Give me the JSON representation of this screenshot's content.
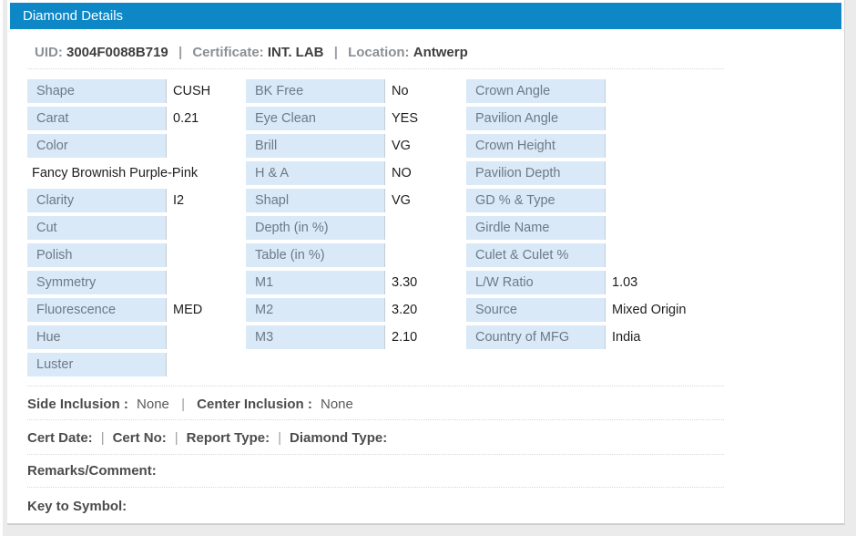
{
  "header": {
    "title": "Diamond Details"
  },
  "summary": {
    "uid_label": "UID:",
    "uid": "3004F0088B719",
    "certificate_label": "Certificate:",
    "certificate": "INT. LAB",
    "location_label": "Location:",
    "location": "Antwerp",
    "separator": "|"
  },
  "table": {
    "col1": [
      {
        "label": "Shape",
        "value": "CUSH"
      },
      {
        "label": "Carat",
        "value": "0.21"
      },
      {
        "label": "Color",
        "value": ""
      },
      {
        "label": "",
        "value": "Fancy Brownish Purple-Pink",
        "full": true
      },
      {
        "label": "Clarity",
        "value": "I2"
      },
      {
        "label": "Cut",
        "value": ""
      },
      {
        "label": "Polish",
        "value": ""
      },
      {
        "label": "Symmetry",
        "value": ""
      },
      {
        "label": "Fluorescence",
        "value": "MED"
      },
      {
        "label": "Hue",
        "value": ""
      },
      {
        "label": "Luster",
        "value": ""
      }
    ],
    "col2": [
      {
        "label": "BK Free",
        "value": "No"
      },
      {
        "label": "Eye Clean",
        "value": "YES"
      },
      {
        "label": "Brill",
        "value": "VG"
      },
      {
        "label": "H & A",
        "value": "NO"
      },
      {
        "label": "Shapl",
        "value": "VG"
      },
      {
        "label": "Depth (in %)",
        "value": ""
      },
      {
        "label": "Table (in %)",
        "value": ""
      },
      {
        "label": "M1",
        "value": "3.30"
      },
      {
        "label": "M2",
        "value": "3.20"
      },
      {
        "label": "M3",
        "value": "2.10"
      }
    ],
    "col3": [
      {
        "label": "Crown Angle",
        "value": ""
      },
      {
        "label": "Pavilion Angle",
        "value": ""
      },
      {
        "label": "Crown Height",
        "value": ""
      },
      {
        "label": "Pavilion Depth",
        "value": ""
      },
      {
        "label": "GD % & Type",
        "value": ""
      },
      {
        "label": "Girdle Name",
        "value": ""
      },
      {
        "label": "Culet & Culet %",
        "value": ""
      },
      {
        "label": "L/W Ratio",
        "value": "1.03"
      },
      {
        "label": "Source",
        "value": "Mixed Origin"
      },
      {
        "label": "Country of MFG",
        "value": "India"
      }
    ]
  },
  "inclusion_line": {
    "side_label": "Side Inclusion :",
    "side_value": "None",
    "separator": "|",
    "center_label": "Center Inclusion :",
    "center_value": "None"
  },
  "cert_line": {
    "separator": "|",
    "items": [
      {
        "label": "Cert Date:",
        "value": ""
      },
      {
        "label": "Cert No:",
        "value": ""
      },
      {
        "label": "Report Type:",
        "value": ""
      },
      {
        "label": "Diamond Type:",
        "value": ""
      }
    ]
  },
  "remarks": {
    "label": "Remarks/Comment:",
    "value": ""
  },
  "key_to_symbol": {
    "label": "Key to Symbol:",
    "value": ""
  },
  "colors": {
    "header_bg": "#0d87c6",
    "cell_bg": "#d9e9f8",
    "label_text": "#6d7a86",
    "value_text": "#1d1d1d"
  }
}
